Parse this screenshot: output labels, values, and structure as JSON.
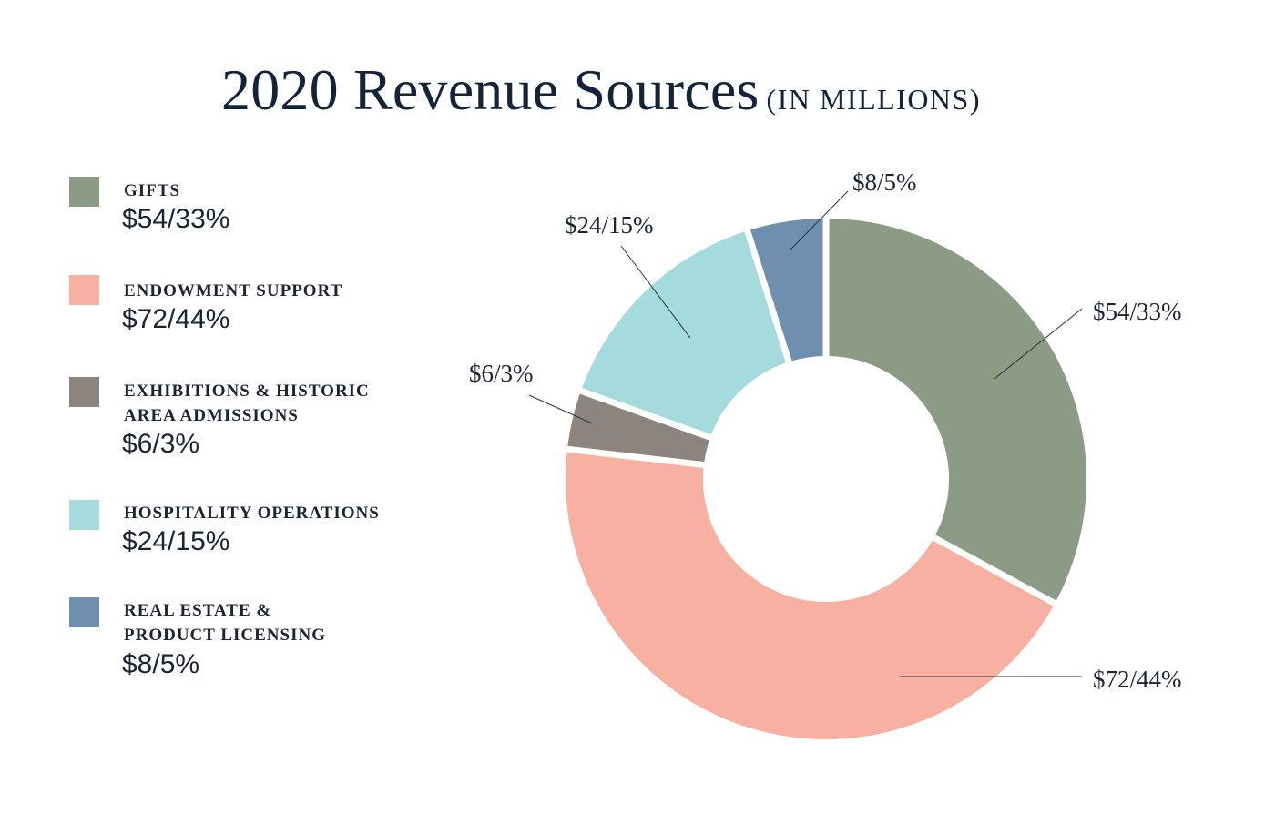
{
  "title": {
    "main": "2020 Revenue Sources",
    "sub": "(IN MILLIONS)"
  },
  "chart_data": {
    "type": "pie",
    "variant": "donut",
    "title": "2020 Revenue Sources (IN MILLIONS)",
    "unit": "millions USD",
    "legend_position": "left",
    "slices": [
      {
        "label": "GIFTS",
        "value": 54,
        "percent": 33,
        "value_label": "$54/33%",
        "color": "#8c9b86"
      },
      {
        "label": "ENDOWMENT SUPPORT",
        "value": 72,
        "percent": 44,
        "value_label": "$72/44%",
        "color": "#f7b0a1"
      },
      {
        "label": "EXHIBITIONS & HISTORIC AREA ADMISSIONS",
        "value": 6,
        "percent": 3,
        "value_label": "$6/3%",
        "color": "#8c857f"
      },
      {
        "label": "HOSPITALITY OPERATIONS",
        "value": 24,
        "percent": 15,
        "value_label": "$24/15%",
        "color": "#a5dbdc"
      },
      {
        "label": "REAL ESTATE & PRODUCT LICENSING",
        "value": 8,
        "percent": 5,
        "value_label": "$8/5%",
        "color": "#6f8fae"
      }
    ]
  }
}
